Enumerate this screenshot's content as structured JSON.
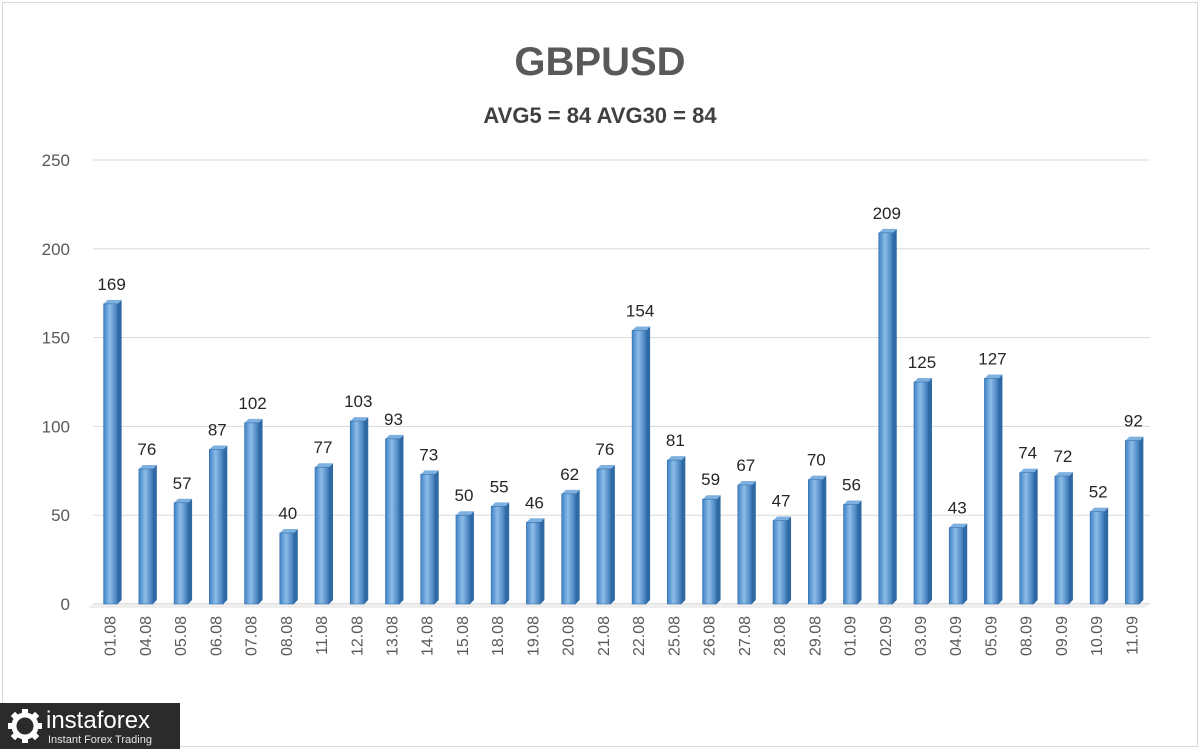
{
  "chart_data": {
    "type": "bar",
    "title": "GBPUSD",
    "subtitle": "AVG5 = 84 AVG30 = 84",
    "xlabel": "",
    "ylabel": "",
    "ylim": [
      0,
      250
    ],
    "yticks": [
      0,
      50,
      100,
      150,
      200,
      250
    ],
    "grid": true,
    "bar_color": "#5b9bd5",
    "categories": [
      "01.08",
      "04.08",
      "05.08",
      "06.08",
      "07.08",
      "08.08",
      "11.08",
      "12.08",
      "13.08",
      "14.08",
      "15.08",
      "18.08",
      "19.08",
      "20.08",
      "21.08",
      "22.08",
      "25.08",
      "26.08",
      "27.08",
      "28.08",
      "29.08",
      "01.09",
      "02.09",
      "03.09",
      "04.09",
      "05.09",
      "08.09",
      "09.09",
      "10.09",
      "11.09"
    ],
    "values": [
      169,
      76,
      57,
      87,
      102,
      40,
      77,
      103,
      93,
      73,
      50,
      55,
      46,
      62,
      76,
      154,
      81,
      59,
      67,
      47,
      70,
      56,
      209,
      125,
      43,
      127,
      74,
      72,
      52,
      92
    ]
  },
  "watermark": {
    "brand": "instaforex",
    "tagline": "Instant Forex Trading"
  }
}
